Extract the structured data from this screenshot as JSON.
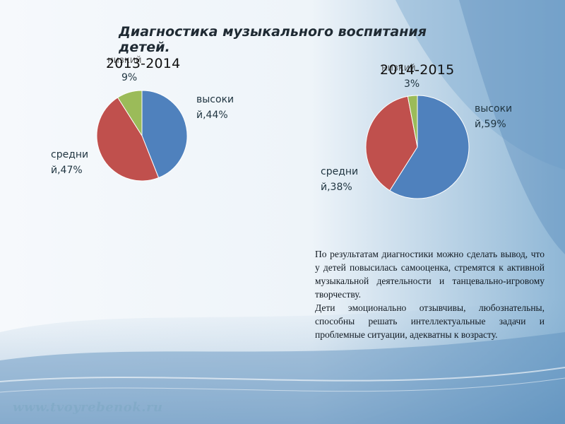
{
  "slide": {
    "title": "Диагностика музыкального воспитания детей.",
    "description": [
      "По результатам диагностики можно сделать вывод, что у детей повысилась самооценка, стремятся к активной музыкальной деятельности и танцевально-игровому творчеству.",
      "Дети эмоционально отзывчивы, любознательны, способны решать интеллектуальные задачи и проблемные ситуации, адекватны к возрасту."
    ],
    "watermark": "www.tvoyrebenok.ru"
  },
  "colors": {
    "high": "#4f81bd",
    "medium": "#c0504d",
    "low": "#9bbb59"
  },
  "chart_data": [
    {
      "type": "pie",
      "title": "2013-2014",
      "series": [
        {
          "name": "высокий",
          "value": 44,
          "label": "высоки й,44%",
          "color": "#4f81bd"
        },
        {
          "name": "средний",
          "value": 47,
          "label": "средни й,47%",
          "color": "#c0504d"
        },
        {
          "name": "низкий",
          "value": 9,
          "label": "9%",
          "color": "#9bbb59"
        }
      ]
    },
    {
      "type": "pie",
      "title": "2014-2015",
      "series": [
        {
          "name": "высокий",
          "value": 59,
          "label": "высоки й,59%",
          "color": "#4f81bd"
        },
        {
          "name": "средний",
          "value": 38,
          "label": "средни й,38%",
          "color": "#c0504d"
        },
        {
          "name": "низкий",
          "value": 3,
          "label": "3%",
          "color": "#9bbb59"
        }
      ]
    }
  ]
}
